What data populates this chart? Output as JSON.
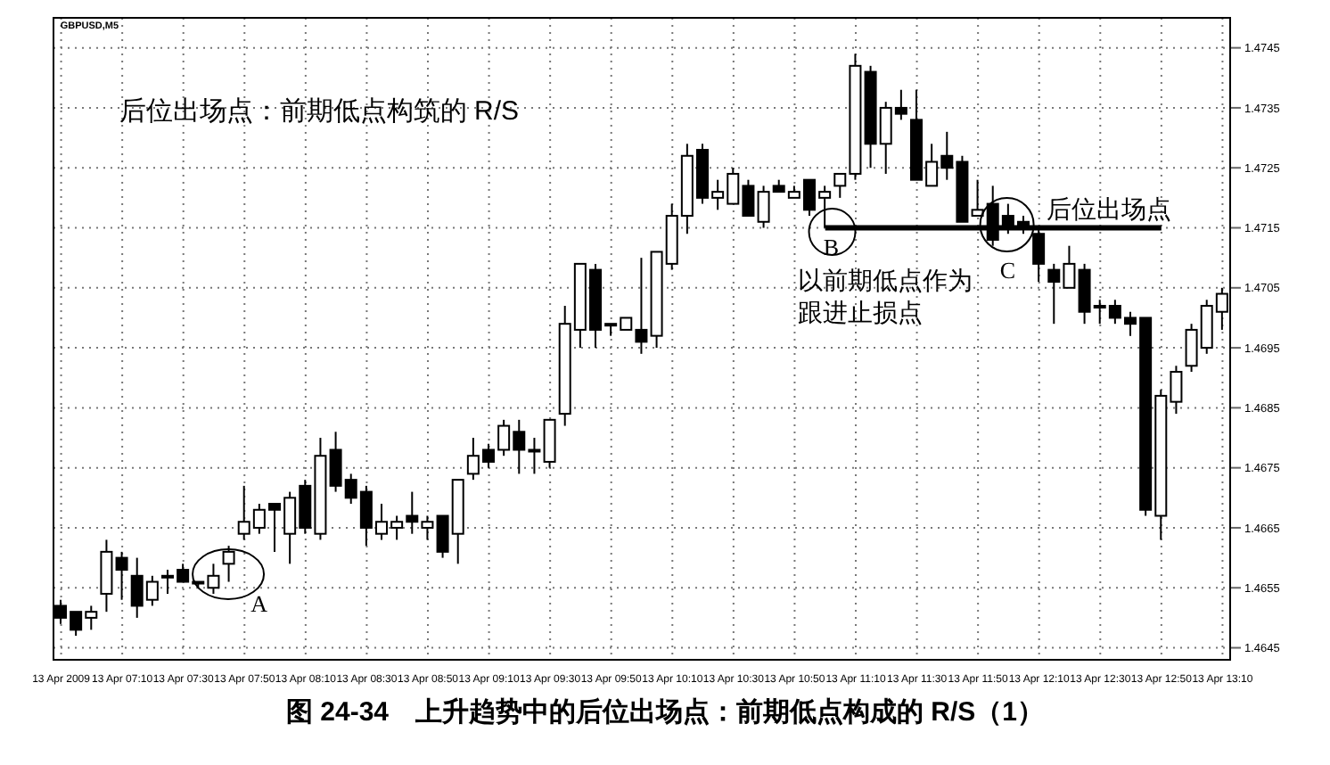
{
  "chart_data": {
    "type": "candlestick",
    "title": "图 24-34　上升趋势中的后位出场点：前期低点构成的 R/S（1）",
    "subtitle": "后位出场点：前期低点构筑的 R/S",
    "annotations": [
      "GBPUSD,M5",
      "A",
      "B",
      "C",
      "后位出场点",
      "以前期低点作为",
      "跟进止损点"
    ],
    "categories": [
      "13 Apr 2009",
      null,
      null,
      null,
      "13 Apr 07:10",
      null,
      null,
      null,
      "13 Apr 07:30",
      null,
      null,
      null,
      "13 Apr 07:50",
      null,
      null,
      null,
      "13 Apr 08:10",
      null,
      null,
      null,
      "13 Apr 08:30",
      null,
      null,
      null,
      "13 Apr 08:50",
      null,
      null,
      null,
      "13 Apr 09:10",
      null,
      null,
      null,
      "13 Apr 09:30",
      null,
      null,
      null,
      "13 Apr 09:50",
      null,
      null,
      null,
      "13 Apr 10:10",
      null,
      null,
      null,
      "13 Apr 10:30",
      null,
      null,
      null,
      "13 Apr 10:50",
      null,
      null,
      null,
      "13 Apr 11:10",
      null,
      null,
      null,
      "13 Apr 11:30",
      null,
      null,
      null,
      "13 Apr 11:50",
      null,
      null,
      null,
      "13 Apr 12:10",
      null,
      null,
      null,
      "13 Apr 12:30",
      null,
      null,
      null,
      "13 Apr 12:50",
      null,
      null,
      null,
      "13 Apr 13:10"
    ],
    "ohlc": [
      [
        1.4652,
        1.4653,
        1.4649,
        1.465
      ],
      [
        1.4651,
        1.4651,
        1.4647,
        1.4648
      ],
      [
        1.465,
        1.4652,
        1.4648,
        1.4651
      ],
      [
        1.4654,
        1.4663,
        1.4651,
        1.4661
      ],
      [
        1.466,
        1.4661,
        1.4653,
        1.4658
      ],
      [
        1.4657,
        1.466,
        1.465,
        1.4652
      ],
      [
        1.4653,
        1.4657,
        1.4652,
        1.4656
      ],
      [
        1.4657,
        1.4658,
        1.4654,
        1.4657
      ],
      [
        1.4658,
        1.4659,
        1.4656,
        1.4656
      ],
      [
        1.4656,
        1.4656,
        1.4655,
        1.4656
      ],
      [
        1.4655,
        1.4659,
        1.4654,
        1.4657
      ],
      [
        1.4659,
        1.4662,
        1.4656,
        1.4661
      ],
      [
        1.4664,
        1.4672,
        1.4663,
        1.4666
      ],
      [
        1.4665,
        1.4669,
        1.4664,
        1.4668
      ],
      [
        1.4669,
        1.4669,
        1.4661,
        1.4668
      ],
      [
        1.4664,
        1.4671,
        1.4659,
        1.467
      ],
      [
        1.4672,
        1.4673,
        1.4664,
        1.4665
      ],
      [
        1.4664,
        1.468,
        1.4663,
        1.4677
      ],
      [
        1.4678,
        1.4681,
        1.4671,
        1.4672
      ],
      [
        1.4673,
        1.4674,
        1.4669,
        1.467
      ],
      [
        1.4671,
        1.4672,
        1.4662,
        1.4665
      ],
      [
        1.4664,
        1.4669,
        1.4663,
        1.4666
      ],
      [
        1.4665,
        1.4667,
        1.4663,
        1.4666
      ],
      [
        1.4667,
        1.4671,
        1.4664,
        1.4666
      ],
      [
        1.4665,
        1.4667,
        1.4663,
        1.4666
      ],
      [
        1.4667,
        1.4667,
        1.466,
        1.4661
      ],
      [
        1.4664,
        1.4673,
        1.4659,
        1.4673
      ],
      [
        1.4674,
        1.468,
        1.4673,
        1.4677
      ],
      [
        1.4678,
        1.4679,
        1.4675,
        1.4676
      ],
      [
        1.4678,
        1.4683,
        1.4677,
        1.4682
      ],
      [
        1.4681,
        1.4683,
        1.4674,
        1.4678
      ],
      [
        1.4678,
        1.468,
        1.4674,
        1.4678
      ],
      [
        1.4676,
        1.4683,
        1.4675,
        1.4683
      ],
      [
        1.4684,
        1.4702,
        1.4682,
        1.4699
      ],
      [
        1.4698,
        1.4709,
        1.4695,
        1.4709
      ],
      [
        1.4708,
        1.4709,
        1.4695,
        1.4698
      ],
      [
        1.4699,
        1.4699,
        1.4697,
        1.4699
      ],
      [
        1.4698,
        1.47,
        1.4698,
        1.47
      ],
      [
        1.4698,
        1.471,
        1.4694,
        1.4696
      ],
      [
        1.4697,
        1.4711,
        1.4695,
        1.4711
      ],
      [
        1.4709,
        1.4719,
        1.4708,
        1.4717
      ],
      [
        1.4717,
        1.4729,
        1.4714,
        1.4727
      ],
      [
        1.4728,
        1.4729,
        1.4719,
        1.472
      ],
      [
        1.472,
        1.4723,
        1.4718,
        1.4721
      ],
      [
        1.4719,
        1.4725,
        1.4719,
        1.4724
      ],
      [
        1.4722,
        1.4723,
        1.4717,
        1.4717
      ],
      [
        1.4716,
        1.4722,
        1.4715,
        1.4721
      ],
      [
        1.4722,
        1.4723,
        1.4721,
        1.4721
      ],
      [
        1.472,
        1.4722,
        1.472,
        1.4721
      ],
      [
        1.4723,
        1.4723,
        1.4717,
        1.4718
      ],
      [
        1.472,
        1.4722,
        1.4715,
        1.4721
      ],
      [
        1.4722,
        1.4724,
        1.472,
        1.4724
      ],
      [
        1.4724,
        1.4744,
        1.4723,
        1.4742
      ],
      [
        1.4741,
        1.4742,
        1.4725,
        1.4729
      ],
      [
        1.4729,
        1.4736,
        1.4724,
        1.4735
      ],
      [
        1.4735,
        1.4738,
        1.4733,
        1.4734
      ],
      [
        1.4733,
        1.4738,
        1.4723,
        1.4723
      ],
      [
        1.4722,
        1.4729,
        1.4722,
        1.4726
      ],
      [
        1.4727,
        1.4731,
        1.4723,
        1.4725
      ],
      [
        1.4726,
        1.4727,
        1.4716,
        1.4716
      ],
      [
        1.4717,
        1.4723,
        1.4717,
        1.4718
      ],
      [
        1.4719,
        1.4722,
        1.4712,
        1.4713
      ],
      [
        1.4717,
        1.4719,
        1.4714,
        1.4715
      ],
      [
        1.4716,
        1.4717,
        1.4714,
        1.4715
      ],
      [
        1.4714,
        1.4715,
        1.4706,
        1.4709
      ],
      [
        1.4708,
        1.4709,
        1.4699,
        1.4706
      ],
      [
        1.4705,
        1.4712,
        1.4705,
        1.4709
      ],
      [
        1.4708,
        1.4709,
        1.4699,
        1.4701
      ],
      [
        1.4702,
        1.4703,
        1.4699,
        1.4702
      ],
      [
        1.4702,
        1.4703,
        1.4699,
        1.47
      ],
      [
        1.47,
        1.4701,
        1.4697,
        1.4699
      ],
      [
        1.47,
        1.47,
        1.4667,
        1.4668
      ],
      [
        1.4667,
        1.4688,
        1.4663,
        1.4687
      ],
      [
        1.4686,
        1.4692,
        1.4684,
        1.4691
      ],
      [
        1.4692,
        1.4699,
        1.4691,
        1.4698
      ],
      [
        1.4695,
        1.4703,
        1.4694,
        1.4702
      ],
      [
        1.4701,
        1.4705,
        1.4698,
        1.4704
      ]
    ],
    "series": [
      {
        "type": "line",
        "color": "#000000",
        "values": [
          null,
          null,
          null,
          null,
          null,
          null,
          null,
          null,
          null,
          null,
          null,
          null,
          null,
          null,
          null,
          null,
          null,
          null,
          null,
          null,
          null,
          null,
          null,
          null,
          null,
          null,
          null,
          null,
          null,
          null,
          null,
          null,
          null,
          null,
          null,
          null,
          null,
          null,
          null,
          null,
          null,
          null,
          null,
          null,
          null,
          null,
          null,
          null,
          null,
          null,
          1.4715,
          1.4715,
          1.4715,
          1.4715,
          1.4715,
          1.4715,
          1.4715,
          1.4715,
          1.4715,
          1.4715,
          1.4715,
          1.4715,
          1.4715,
          1.4715,
          1.4715,
          1.4715,
          1.4715,
          1.4715,
          1.4715,
          1.4715,
          1.4715,
          1.4715,
          1.4715,
          null,
          null,
          null,
          null
        ]
      }
    ],
    "ylim": [
      1.4643,
      1.475
    ],
    "yticks": [
      1.4645,
      1.4655,
      1.4665,
      1.4675,
      1.4685,
      1.4695,
      1.4705,
      1.4715,
      1.4725,
      1.4735,
      1.4745
    ],
    "grid": true
  }
}
